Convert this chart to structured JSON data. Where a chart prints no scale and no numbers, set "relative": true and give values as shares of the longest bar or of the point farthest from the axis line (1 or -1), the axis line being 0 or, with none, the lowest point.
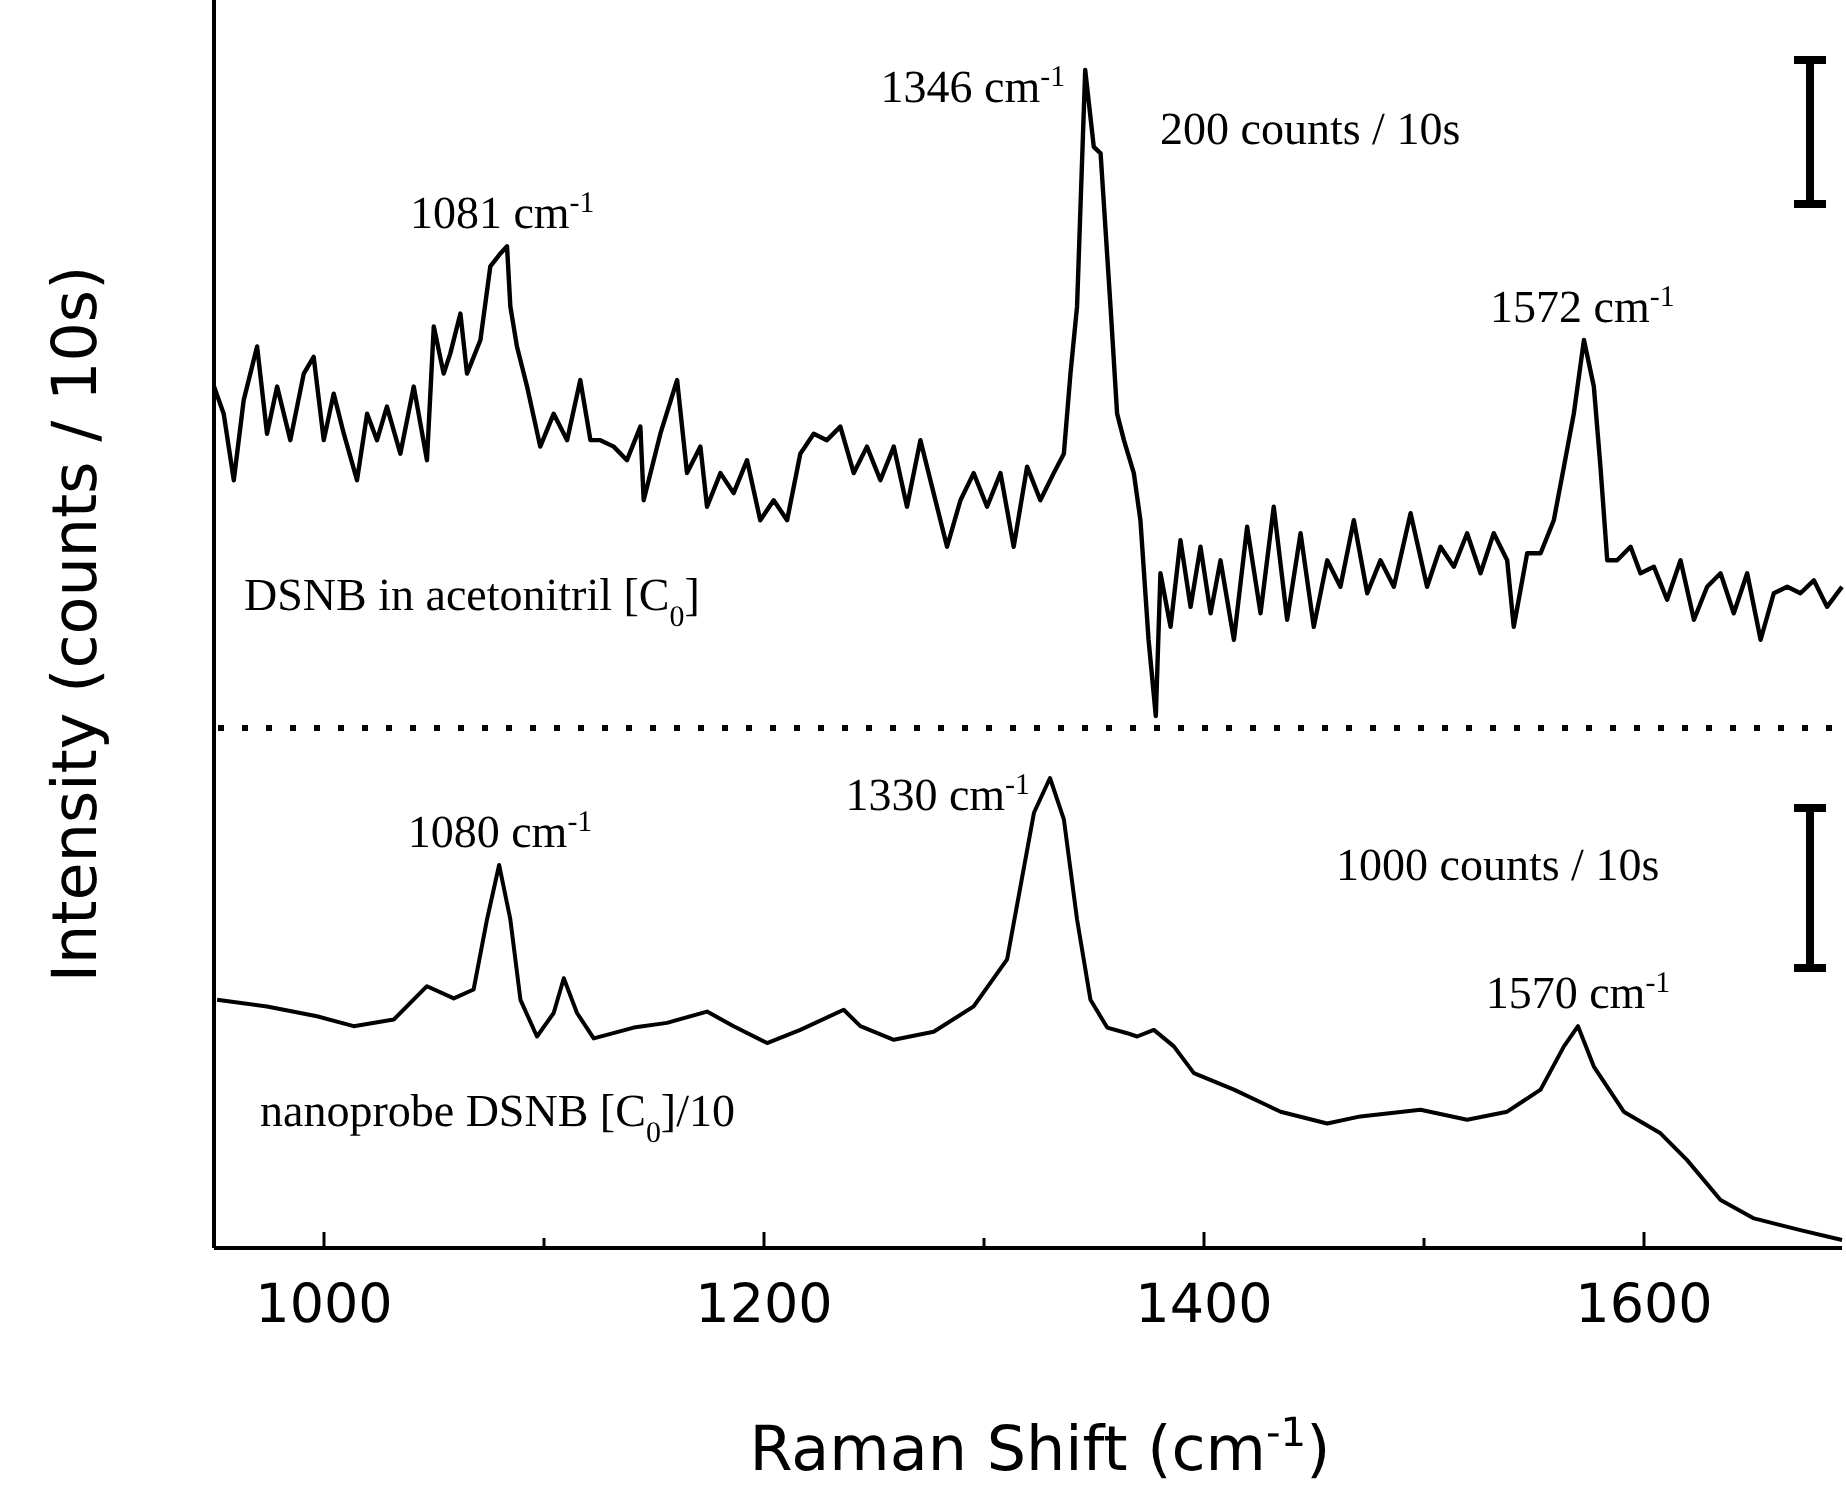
{
  "chart_data": [
    {
      "type": "line",
      "relative": true,
      "tick_labels": false,
      "xlim": [
        950,
        1690
      ],
      "ylabel": "Intensity (counts / 10s)",
      "annotations": [
        {
          "text": "1081 cm$^{-1}$",
          "x": 1081,
          "y": 0.727
        },
        {
          "text": "1346 cm$^{-1}$",
          "x": 1346,
          "y": 1
        },
        {
          "text": "1572 cm$^{-1}$",
          "x": 1572,
          "y": 0.582
        },
        "200 counts / 10s",
        "DSNB in acetonitril [C$_{0}$]"
      ],
      "series": [
        {
          "color": "#000000",
          "x": [
            950,
            954.4,
            959,
            963.5,
            969.6,
            974.1,
            978.7,
            984.7,
            990.8,
            995.3,
            999.9,
            1004.4,
            1009,
            1015,
            1019.6,
            1024.1,
            1028.6,
            1034.7,
            1040.8,
            1046.8,
            1049.9,
            1054.4,
            1057.4,
            1062,
            1065,
            1071.1,
            1075.6,
            1080.2,
            1083.2,
            1084.7,
            1087.7,
            1092.3,
            1098.3,
            1104.4,
            1110.5,
            1116.5,
            1121.1,
            1125.6,
            1131.7,
            1137.7,
            1143.8,
            1145.3,
            1152.9,
            1160.5,
            1165,
            1171.1,
            1174.1,
            1180.2,
            1186.2,
            1192.3,
            1198.3,
            1204.4,
            1210.5,
            1216.5,
            1222.6,
            1228.6,
            1234.7,
            1240.8,
            1246.8,
            1252.9,
            1259,
            1265,
            1271.1,
            1277.1,
            1283.2,
            1289.3,
            1295.3,
            1301.4,
            1307.5,
            1313.5,
            1319.6,
            1325.6,
            1331.7,
            1336.3,
            1339.3,
            1342.3,
            1346,
            1349.9,
            1353,
            1357.5,
            1360.5,
            1363.6,
            1368.1,
            1371.1,
            1374.8,
            1378.1,
            1380.2,
            1384.8,
            1389.3,
            1393.9,
            1398.4,
            1403,
            1407.5,
            1413.6,
            1419.6,
            1425.7,
            1431.7,
            1437.8,
            1443.9,
            1449.9,
            1456,
            1462,
            1468.1,
            1474.2,
            1480.2,
            1486.3,
            1493.9,
            1501.4,
            1507.5,
            1513.6,
            1519.6,
            1525.7,
            1531.7,
            1537.8,
            1540.8,
            1546.9,
            1553,
            1559,
            1563.6,
            1568.1,
            1572.7,
            1577.2,
            1580.2,
            1583.3,
            1587.8,
            1593.9,
            1598.4,
            1604.5,
            1610.5,
            1616.6,
            1622.7,
            1628.7,
            1634.8,
            1640.8,
            1646.9,
            1653,
            1659,
            1665.1,
            1671.1,
            1677.2,
            1683.2,
            1690
          ],
          "values": [
            0.51,
            0.468,
            0.365,
            0.489,
            0.572,
            0.437,
            0.51,
            0.427,
            0.53,
            0.556,
            0.427,
            0.499,
            0.437,
            0.365,
            0.468,
            0.427,
            0.479,
            0.406,
            0.51,
            0.396,
            0.603,
            0.53,
            0.561,
            0.623,
            0.53,
            0.582,
            0.696,
            0.716,
            0.727,
            0.634,
            0.572,
            0.51,
            0.417,
            0.468,
            0.427,
            0.52,
            0.427,
            0.427,
            0.417,
            0.396,
            0.448,
            0.334,
            0.437,
            0.52,
            0.376,
            0.417,
            0.324,
            0.376,
            0.345,
            0.396,
            0.303,
            0.334,
            0.303,
            0.406,
            0.437,
            0.427,
            0.448,
            0.376,
            0.417,
            0.365,
            0.417,
            0.324,
            0.427,
            0.345,
            0.262,
            0.334,
            0.376,
            0.324,
            0.376,
            0.262,
            0.386,
            0.334,
            0.376,
            0.406,
            0.53,
            0.634,
            1,
            0.881,
            0.871,
            0.634,
            0.468,
            0.427,
            0.376,
            0.303,
            0.118,
            0,
            0.221,
            0.138,
            0.272,
            0.169,
            0.262,
            0.159,
            0.241,
            0.118,
            0.293,
            0.159,
            0.324,
            0.149,
            0.283,
            0.138,
            0.241,
            0.2,
            0.303,
            0.19,
            0.241,
            0.2,
            0.314,
            0.2,
            0.262,
            0.231,
            0.283,
            0.221,
            0.283,
            0.241,
            0.138,
            0.252,
            0.252,
            0.303,
            0.386,
            0.468,
            0.582,
            0.51,
            0.386,
            0.241,
            0.241,
            0.262,
            0.221,
            0.231,
            0.18,
            0.241,
            0.149,
            0.2,
            0.221,
            0.159,
            0.221,
            0.118,
            0.19,
            0.2,
            0.19,
            0.21,
            0.169,
            0.2
          ]
        }
      ]
    },
    {
      "type": "line",
      "relative": true,
      "tick_labels": "x",
      "xlim": [
        950,
        1690
      ],
      "xlabel": "Raman Shift (cm$^{-1}$)",
      "xticks": [
        1000,
        {
          "value": 1100,
          "label": null
        },
        1200,
        {
          "value": 1300,
          "label": null
        },
        1400,
        {
          "value": 1500,
          "label": null
        },
        1600
      ],
      "annotations": [
        {
          "text": "1080 cm$^{-1}$",
          "x": 1080,
          "y": 0.815
        },
        {
          "text": "1330 cm$^{-1}$",
          "x": 1330,
          "y": 1
        },
        {
          "text": "1570 cm$^{-1}$",
          "x": 1570,
          "y": 0.472
        },
        "1000 counts / 10s",
        "nanoprobe DSNB [C$_{0}$]/10"
      ],
      "series": [
        {
          "color": "#000000",
          "x": [
            951.4,
            974.1,
            996.8,
            1013.5,
            1031.7,
            1046.8,
            1059,
            1068,
            1074.1,
            1079.6,
            1084.7,
            1089.3,
            1096.8,
            1104.4,
            1109,
            1115,
            1122.6,
            1140.8,
            1155.9,
            1174.1,
            1186.2,
            1201.4,
            1216.5,
            1236.2,
            1243.8,
            1259,
            1277.1,
            1295.3,
            1310.5,
            1316.6,
            1322.7,
            1330,
            1336.3,
            1342.3,
            1348.4,
            1356,
            1365.1,
            1369.6,
            1377.2,
            1386.3,
            1395.4,
            1413.6,
            1434.8,
            1456,
            1471.1,
            1498.4,
            1519.6,
            1537.8,
            1553,
            1563.6,
            1570,
            1577.2,
            1590.8,
            1607.5,
            1619.6,
            1634.8,
            1650,
            1671.1,
            1690
          ],
          "values": [
            0.528,
            0.514,
            0.493,
            0.472,
            0.486,
            0.557,
            0.531,
            0.55,
            0.699,
            0.815,
            0.699,
            0.528,
            0.45,
            0.5,
            0.574,
            0.5,
            0.446,
            0.469,
            0.479,
            0.503,
            0.472,
            0.436,
            0.464,
            0.507,
            0.472,
            0.443,
            0.46,
            0.514,
            0.614,
            0.77,
            0.926,
            1,
            0.912,
            0.699,
            0.528,
            0.469,
            0.457,
            0.45,
            0.464,
            0.429,
            0.372,
            0.337,
            0.29,
            0.265,
            0.28,
            0.294,
            0.273,
            0.29,
            0.337,
            0.429,
            0.472,
            0.386,
            0.29,
            0.244,
            0.187,
            0.102,
            0.063,
            0.038,
            0.017
          ]
        }
      ]
    }
  ]
}
